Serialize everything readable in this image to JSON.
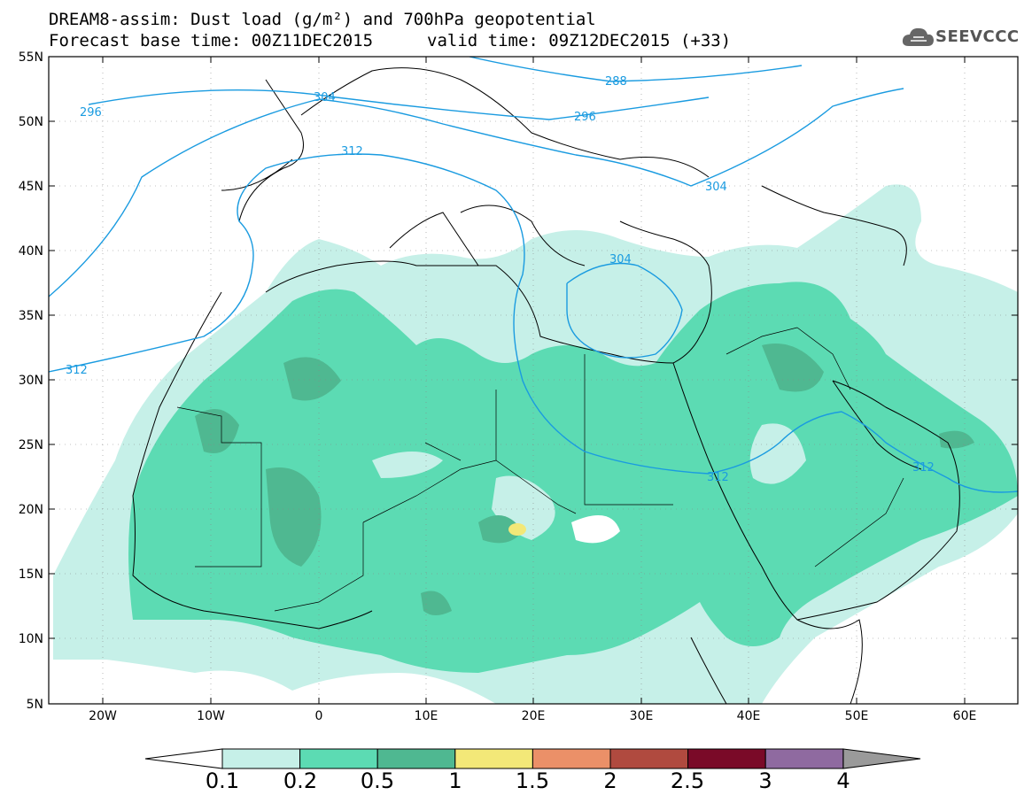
{
  "header": {
    "title_line1": "DREAM8-assim: Dust load (g/m²) and 700hPa geopotential",
    "title_line2_base": "Forecast base time: 00Z11DEC2015",
    "title_line2_valid": "valid time: 09Z12DEC2015 (+33)"
  },
  "logo": {
    "text": "SEEVCCC",
    "icon": "cloud-logo-icon"
  },
  "map": {
    "lon_labels": [
      "20W",
      "10W",
      "0",
      "10E",
      "20E",
      "30E",
      "40E",
      "50E",
      "60E"
    ],
    "lat_labels": [
      "55N",
      "50N",
      "45N",
      "40N",
      "35N",
      "30N",
      "25N",
      "20N",
      "15N",
      "10N",
      "5N"
    ],
    "contour_labels": [
      "288",
      "296",
      "296",
      "304",
      "304",
      "304",
      "312",
      "312",
      "312",
      "312"
    ],
    "dust_colors": {
      "c01": "#c6f0e8",
      "c02": "#5cdbb3",
      "c05": "#4fb891",
      "c1": "#f3e878",
      "contour": "#1a9be0"
    }
  },
  "legend": {
    "labels": [
      "0.1",
      "0.2",
      "0.5",
      "1",
      "1.5",
      "2",
      "2.5",
      "3",
      "4"
    ],
    "colors": [
      "#c6f0e8",
      "#5cdbb3",
      "#4fb891",
      "#f3e878",
      "#eb9068",
      "#b04a3f",
      "#7a0a28",
      "#8f6aa0"
    ],
    "under_color": "#ffffff",
    "over_color": "#9a9a9a"
  }
}
